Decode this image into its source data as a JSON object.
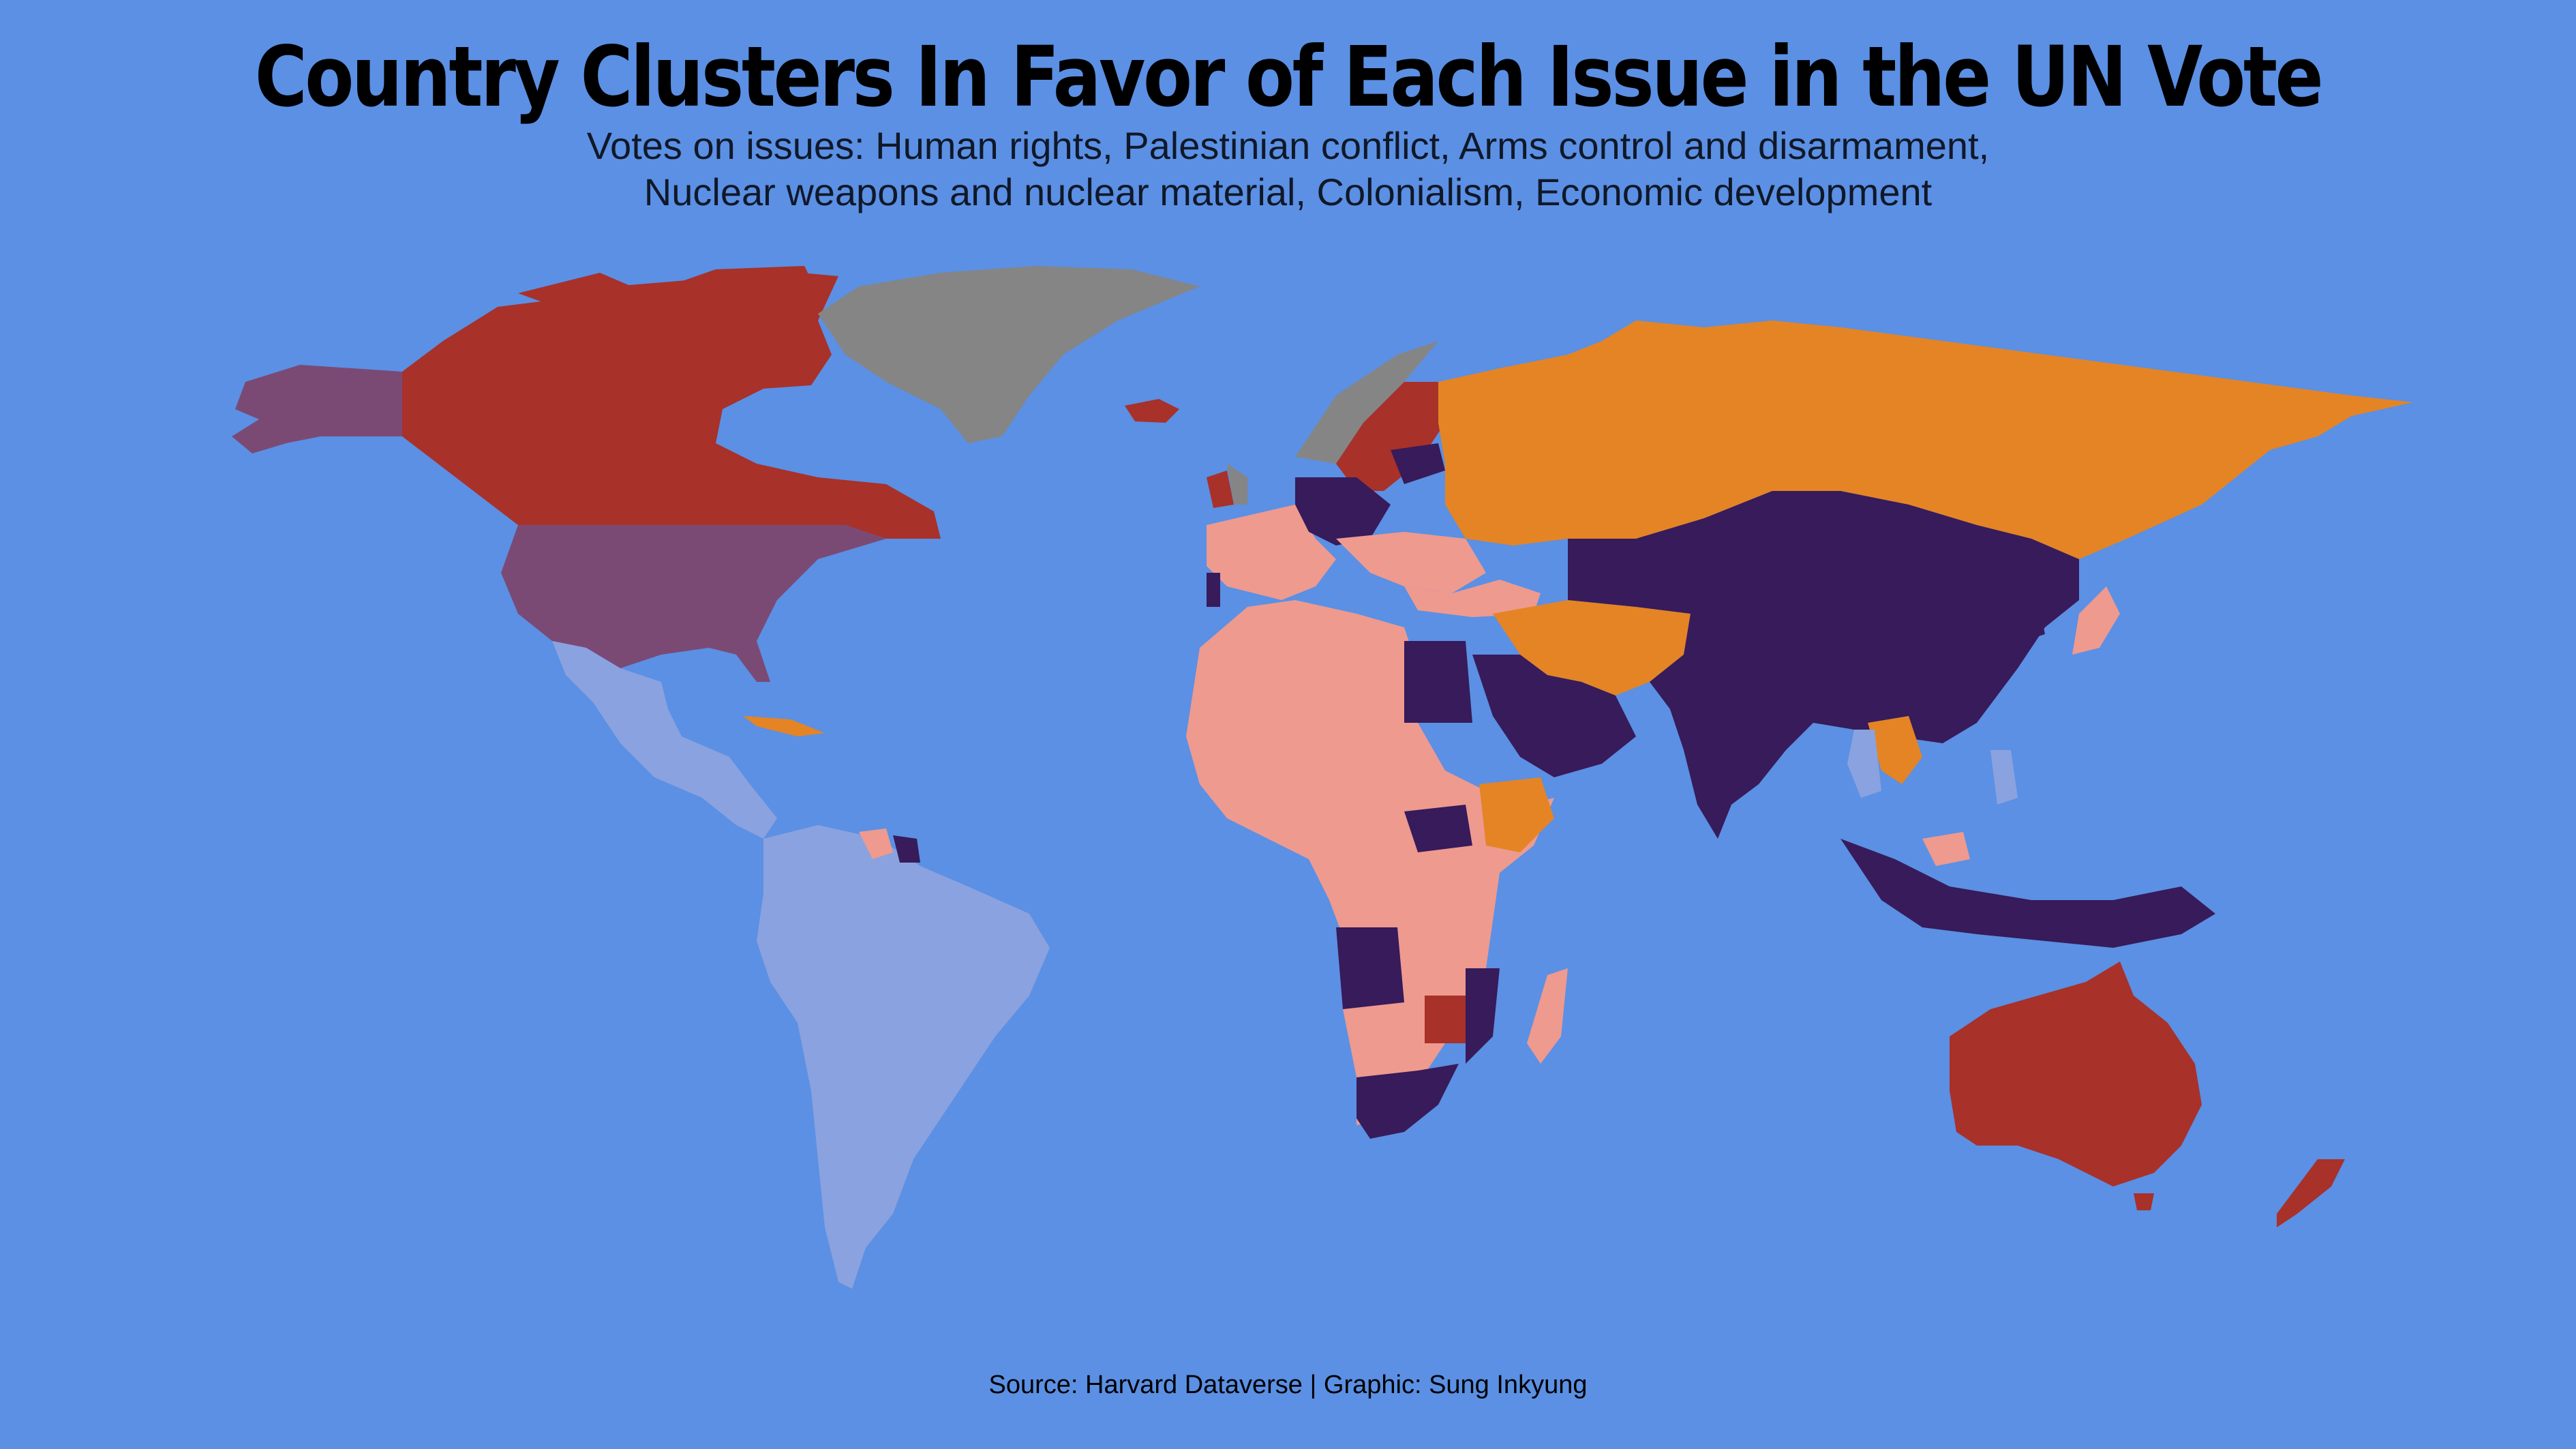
{
  "title": "Country Clusters In Favor of Each Issue in the UN Vote",
  "subtitle_line1": "Votes on issues: Human rights, Palestinian conflict, Arms control and disarmament,",
  "subtitle_line2": "Nuclear weapons and nuclear material, Colonialism, Economic development",
  "caption": "Source: Harvard Dataverse | Graphic: Sung Inkyung",
  "colors": {
    "background": "#5b90e4",
    "red_cluster": "#a8312a",
    "purple_cluster": "#7a4a75",
    "dark_purple_cluster": "#371b5a",
    "orange_cluster": "#e48425",
    "pink_cluster": "#ee9a8f",
    "lavender_cluster": "#8aa2df",
    "grey_nodata": "#858585"
  }
}
